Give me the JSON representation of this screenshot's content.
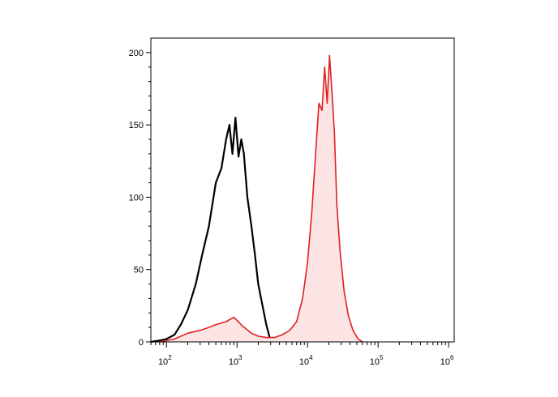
{
  "chart_data": {
    "type": "area",
    "title": "",
    "xlabel": "",
    "ylabel": "",
    "x_scale": "log",
    "xlim": [
      60,
      1200000
    ],
    "ylim": [
      0,
      210
    ],
    "grid": false,
    "legend": "none",
    "y_ticks": [
      0,
      50,
      100,
      150,
      200
    ],
    "y_tick_labels": [
      "0",
      "50",
      "100",
      "150",
      "200"
    ],
    "x_ticks": [
      100,
      1000,
      10000,
      100000,
      1000000
    ],
    "x_tick_labels": [
      {
        "base": "10",
        "exp": "2"
      },
      {
        "base": "10",
        "exp": "3"
      },
      {
        "base": "10",
        "exp": "4"
      },
      {
        "base": "10",
        "exp": "5"
      },
      {
        "base": "10",
        "exp": "6"
      }
    ],
    "series": [
      {
        "color": "#000000",
        "fill": "none",
        "x": [
          60,
          80,
          100,
          130,
          160,
          200,
          260,
          320,
          400,
          500,
          600,
          700,
          780,
          860,
          950,
          1050,
          1150,
          1250,
          1400,
          1600,
          1800,
          2000,
          2300,
          2600,
          2900,
          3200
        ],
        "y": [
          0,
          1,
          2,
          5,
          12,
          22,
          40,
          60,
          80,
          110,
          120,
          140,
          150,
          130,
          155,
          128,
          140,
          130,
          100,
          80,
          60,
          40,
          25,
          12,
          3,
          0
        ]
      },
      {
        "color": "#e02020",
        "fill": "#fde4e4",
        "x": [
          80,
          130,
          200,
          300,
          400,
          500,
          700,
          900,
          1200,
          1600,
          2000,
          2600,
          3400,
          4400,
          5600,
          7000,
          8500,
          10000,
          11500,
          13000,
          14500,
          16000,
          17500,
          19000,
          20500,
          22000,
          24000,
          26000,
          29000,
          33000,
          38000,
          44000,
          52000,
          60000
        ],
        "y": [
          0,
          2,
          6,
          8,
          10,
          12,
          14,
          17,
          11,
          6,
          4,
          3,
          3,
          5,
          8,
          14,
          30,
          55,
          90,
          130,
          165,
          160,
          190,
          165,
          198,
          175,
          145,
          95,
          62,
          35,
          18,
          8,
          2,
          0
        ]
      }
    ]
  }
}
